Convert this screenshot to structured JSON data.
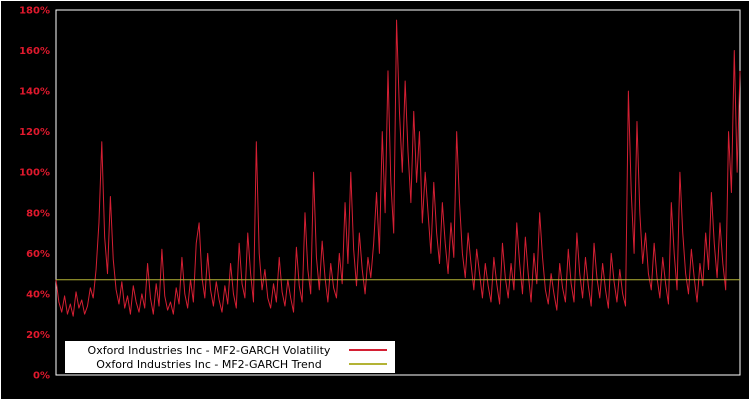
{
  "chart_data": {
    "type": "line",
    "title": "",
    "xlabel": "",
    "ylabel": "",
    "ylim": [
      0,
      180
    ],
    "yticks": [
      0,
      20,
      40,
      60,
      80,
      100,
      120,
      140,
      160,
      180
    ],
    "ytick_suffix": "%",
    "grid": false,
    "legend_position": "bottom-left",
    "series": [
      {
        "name": "Oxford Industries Inc - MF2-GARCH Volatility",
        "color": "#d41f33",
        "values": [
          47,
          36,
          31,
          39,
          30,
          35,
          29,
          41,
          33,
          37,
          30,
          34,
          43,
          38,
          52,
          75,
          115,
          68,
          50,
          88,
          57,
          42,
          35,
          46,
          33,
          39,
          30,
          44,
          36,
          31,
          40,
          33,
          55,
          38,
          30,
          45,
          34,
          62,
          39,
          32,
          36,
          30,
          43,
          35,
          58,
          40,
          33,
          47,
          36,
          65,
          75,
          48,
          38,
          60,
          42,
          34,
          46,
          37,
          31,
          44,
          35,
          55,
          40,
          33,
          65,
          45,
          38,
          70,
          50,
          36,
          115,
          60,
          42,
          52,
          38,
          33,
          45,
          36,
          58,
          41,
          34,
          47,
          38,
          31,
          63,
          44,
          36,
          80,
          52,
          40,
          100,
          58,
          42,
          66,
          48,
          36,
          55,
          43,
          38,
          60,
          45,
          85,
          55,
          100,
          62,
          44,
          70,
          52,
          40,
          58,
          48,
          65,
          90,
          60,
          120,
          80,
          150,
          95,
          70,
          175,
          130,
          100,
          145,
          110,
          85,
          130,
          95,
          120,
          75,
          100,
          80,
          60,
          95,
          70,
          55,
          85,
          65,
          50,
          75,
          58,
          120,
          85,
          60,
          48,
          70,
          55,
          42,
          62,
          50,
          38,
          55,
          44,
          36,
          58,
          45,
          35,
          65,
          48,
          38,
          55,
          42,
          75,
          55,
          40,
          68,
          50,
          36,
          60,
          45,
          80,
          58,
          42,
          35,
          50,
          40,
          32,
          55,
          43,
          36,
          62,
          45,
          36,
          70,
          50,
          38,
          58,
          44,
          34,
          65,
          48,
          38,
          55,
          42,
          33,
          60,
          46,
          36,
          52,
          40,
          34,
          140,
          90,
          60,
          125,
          80,
          55,
          70,
          50,
          42,
          65,
          48,
          38,
          58,
          45,
          35,
          85,
          60,
          42,
          100,
          70,
          50,
          40,
          62,
          48,
          36,
          55,
          44,
          70,
          52,
          90,
          65,
          48,
          75,
          55,
          42,
          120,
          90,
          160,
          100,
          150
        ]
      },
      {
        "name": "Oxford Industries Inc - MF2-GARCH Trend",
        "color": "#b3b335",
        "values": [
          47,
          47
        ]
      }
    ]
  },
  "colors": {
    "background": "#000000",
    "frame": "#ffffff",
    "tick_label": "#e0192d"
  }
}
